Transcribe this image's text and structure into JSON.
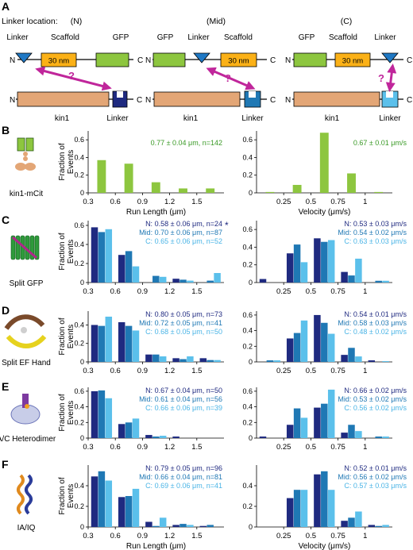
{
  "colors": {
    "N": "#1f2a80",
    "Mid": "#1f78b4",
    "C": "#5bc0eb",
    "B": "#8dc63f",
    "linker": "#1f78c4",
    "scaffold": "#fbb117",
    "gfp": "#8dc63f",
    "kin1": "#e3a676",
    "arrow": "#c0269b",
    "statN": "#1f2a80",
    "statMid": "#1f78b4",
    "statC": "#4ab4e6",
    "statB": "#3a9a26"
  },
  "panelA": {
    "letter": "A",
    "heading": "Linker location:",
    "locations": [
      "(N)",
      "(Mid)",
      "(C)"
    ],
    "labels": {
      "linker": "Linker",
      "scaffold": "Scaffold",
      "gfp": "GFP",
      "scaffold_inner": "30 nm",
      "kin1": "kin1",
      "N": "N",
      "C": "C",
      "question": "?"
    }
  },
  "panels": [
    {
      "letter": "B",
      "construct": "kin1-mCit",
      "icon": "kin1-mcit-icon",
      "runlength": {
        "stats": [
          {
            "text": "0.77 ± 0.04 μm, n=142",
            "color": "statB"
          }
        ],
        "star": ""
      },
      "velocity": {
        "stats": [
          {
            "text": "0.67 ± 0.01 μm/s",
            "color": "statB"
          }
        ]
      }
    },
    {
      "letter": "C",
      "construct": "Split GFP",
      "icon": "split-gfp-icon",
      "runlength": {
        "stats": [
          {
            "text": "N: 0.58 ± 0.06 μm, n=24",
            "color": "statN"
          },
          {
            "text": "Mid: 0.70 ± 0.06 μm, n=87",
            "color": "statMid"
          },
          {
            "text": "C: 0.65 ± 0.06 μm, n=52",
            "color": "statC"
          }
        ],
        "star": "*"
      },
      "velocity": {
        "stats": [
          {
            "text": "N: 0.53 ± 0.03 μm/s",
            "color": "statN"
          },
          {
            "text": "Mid: 0.54 ± 0.02 μm/s",
            "color": "statMid"
          },
          {
            "text": "C: 0.63 ± 0.03 μm/s",
            "color": "statC"
          }
        ]
      }
    },
    {
      "letter": "D",
      "construct": "Split EF Hand",
      "icon": "split-ef-hand-icon",
      "runlength": {
        "stats": [
          {
            "text": "N: 0.80 ± 0.05 μm, n=73",
            "color": "statN"
          },
          {
            "text": "Mid: 0.72 ± 0.05 μm, n=41",
            "color": "statMid"
          },
          {
            "text": "C: 0.68 ± 0.05 μm, n=50",
            "color": "statC"
          }
        ],
        "star": ""
      },
      "velocity": {
        "stats": [
          {
            "text": "N: 0.54 ± 0.01 μm/s",
            "color": "statN"
          },
          {
            "text": "Mid: 0.58 ± 0.03 μm/s",
            "color": "statMid"
          },
          {
            "text": "C: 0.48 ± 0.02 μm/s",
            "color": "statC"
          }
        ]
      }
    },
    {
      "letter": "E",
      "construct": "A/C Heterodimer",
      "icon": "ac-heterodimer-icon",
      "runlength": {
        "stats": [
          {
            "text": "N: 0.67 ± 0.04 μm, n=50",
            "color": "statN"
          },
          {
            "text": "Mid: 0.61 ± 0.04 μm, n=56",
            "color": "statMid"
          },
          {
            "text": "C: 0.66 ± 0.06 μm, n=39",
            "color": "statC"
          }
        ],
        "star": ""
      },
      "velocity": {
        "stats": [
          {
            "text": "N: 0.66 ± 0.02 μm/s",
            "color": "statN"
          },
          {
            "text": "Mid: 0.53 ± 0.02 μm/s",
            "color": "statMid"
          },
          {
            "text": "C: 0.56 ± 0.02 μm/s",
            "color": "statC"
          }
        ]
      }
    },
    {
      "letter": "F",
      "construct": "IA/IQ",
      "icon": "ia-iq-icon",
      "runlength": {
        "stats": [
          {
            "text": "N: 0.79 ± 0.05 μm, n=96",
            "color": "statN"
          },
          {
            "text": "Mid: 0.66 ± 0.04 μm, n=81",
            "color": "statMid"
          },
          {
            "text": "C: 0.69 ± 0.06 μm, n=41",
            "color": "statC"
          }
        ],
        "star": ""
      },
      "velocity": {
        "stats": [
          {
            "text": "N: 0.52 ± 0.01 μm/s",
            "color": "statN"
          },
          {
            "text": "Mid: 0.56 ± 0.02 μm/s",
            "color": "statMid"
          },
          {
            "text": "C: 0.57 ± 0.03 μm/s",
            "color": "statC"
          }
        ]
      }
    }
  ],
  "chart_data": [
    {
      "panel": "B",
      "type": "bar",
      "xlabel": "Run Length (μm)",
      "ylabel": "Fraction of Events",
      "xlim": [
        0.3,
        1.8
      ],
      "ylim": [
        0,
        0.7
      ],
      "xticks": [
        "0.3",
        "0.6",
        "0.9",
        "1.2",
        "1.5"
      ],
      "yticks": [
        "0",
        "0.2",
        "0.4",
        "0.6"
      ],
      "x": [
        0.45,
        0.75,
        1.05,
        1.35,
        1.65
      ],
      "series": [
        {
          "key": "B",
          "values": [
            0.37,
            0.33,
            0.12,
            0.05,
            0.05
          ]
        }
      ]
    },
    {
      "panel": "B",
      "type": "bar",
      "xlabel": "Velocity (μm/s)",
      "ylabel": "",
      "xlim": [
        0,
        1.25
      ],
      "ylim": [
        0,
        0.7
      ],
      "xticks": [
        "0.25",
        "0.5",
        "0.75",
        "1"
      ],
      "yticks": [
        "0",
        "0.2",
        "0.4",
        "0.6"
      ],
      "x": [
        0.125,
        0.375,
        0.625,
        0.875,
        1.125
      ],
      "series": [
        {
          "key": "B",
          "values": [
            0.01,
            0.09,
            0.68,
            0.22,
            0.01
          ]
        }
      ]
    },
    {
      "panel": "C",
      "type": "bar",
      "xlabel": "",
      "ylabel": "Fraction of Events",
      "xlim": [
        0.3,
        1.8
      ],
      "ylim": [
        0,
        0.65
      ],
      "xticks": [
        "0.3",
        "0.6",
        "0.9",
        "1.2",
        "1.5"
      ],
      "yticks": [
        "0",
        "0.2",
        "0.4",
        "0.6"
      ],
      "x": [
        0.45,
        0.75,
        1.05,
        1.35,
        1.65
      ],
      "series": [
        {
          "key": "N",
          "values": [
            0.58,
            0.29,
            0.0,
            0.04,
            0.0
          ]
        },
        {
          "key": "Mid",
          "values": [
            0.53,
            0.33,
            0.07,
            0.03,
            0.02
          ]
        },
        {
          "key": "C",
          "values": [
            0.56,
            0.17,
            0.06,
            0.02,
            0.1
          ]
        }
      ]
    },
    {
      "panel": "C",
      "type": "bar",
      "xlabel": "",
      "ylabel": "",
      "xlim": [
        0,
        1.25
      ],
      "ylim": [
        0,
        0.7
      ],
      "xticks": [
        "0.25",
        "0.5",
        "0.75",
        "1"
      ],
      "yticks": [
        "0",
        "0.2",
        "0.4",
        "0.6"
      ],
      "x": [
        0.125,
        0.375,
        0.625,
        0.875,
        1.125
      ],
      "series": [
        {
          "key": "N",
          "values": [
            0.04,
            0.33,
            0.5,
            0.12,
            0.0
          ]
        },
        {
          "key": "Mid",
          "values": [
            0.0,
            0.43,
            0.46,
            0.08,
            0.02
          ]
        },
        {
          "key": "C",
          "values": [
            0.0,
            0.23,
            0.48,
            0.27,
            0.02
          ]
        }
      ]
    },
    {
      "panel": "D",
      "type": "bar",
      "xlabel": "",
      "ylabel": "Fraction of Events",
      "xlim": [
        0.3,
        1.8
      ],
      "ylim": [
        0,
        0.55
      ],
      "xticks": [
        "0.3",
        "0.6",
        "0.9",
        "1.2",
        "1.5"
      ],
      "yticks": [
        "0",
        "0.2",
        "0.4"
      ],
      "x": [
        0.45,
        0.75,
        1.05,
        1.35,
        1.65
      ],
      "series": [
        {
          "key": "N",
          "values": [
            0.4,
            0.43,
            0.08,
            0.04,
            0.04
          ]
        },
        {
          "key": "Mid",
          "values": [
            0.39,
            0.39,
            0.08,
            0.03,
            0.02
          ]
        },
        {
          "key": "C",
          "values": [
            0.49,
            0.34,
            0.06,
            0.06,
            0.02
          ]
        }
      ]
    },
    {
      "panel": "D",
      "type": "bar",
      "xlabel": "",
      "ylabel": "",
      "xlim": [
        0,
        1.25
      ],
      "ylim": [
        0,
        0.65
      ],
      "xticks": [
        "0.25",
        "0.5",
        "0.75",
        "1"
      ],
      "yticks": [
        "0",
        "0.2",
        "0.4",
        "0.6"
      ],
      "x": [
        0.125,
        0.375,
        0.625,
        0.875,
        1.125
      ],
      "series": [
        {
          "key": "N",
          "values": [
            0.0,
            0.3,
            0.6,
            0.09,
            0.02
          ]
        },
        {
          "key": "Mid",
          "values": [
            0.02,
            0.37,
            0.5,
            0.18,
            0.0
          ]
        },
        {
          "key": "C",
          "values": [
            0.02,
            0.53,
            0.36,
            0.07,
            0.01
          ]
        }
      ]
    },
    {
      "panel": "E",
      "type": "bar",
      "xlabel": "",
      "ylabel": "Fraction of Events",
      "xlim": [
        0.3,
        1.8
      ],
      "ylim": [
        0,
        0.65
      ],
      "xticks": [
        "0.3",
        "0.6",
        "0.9",
        "1.2",
        "1.5"
      ],
      "yticks": [
        "0",
        "0.2",
        "0.4",
        "0.6"
      ],
      "x": [
        0.45,
        0.75,
        1.05,
        1.35,
        1.65
      ],
      "series": [
        {
          "key": "N",
          "values": [
            0.6,
            0.18,
            0.04,
            0.02,
            0.0
          ]
        },
        {
          "key": "Mid",
          "values": [
            0.61,
            0.2,
            0.02,
            0.0,
            0.0
          ]
        },
        {
          "key": "C",
          "values": [
            0.51,
            0.25,
            0.03,
            0.0,
            0.0
          ]
        }
      ]
    },
    {
      "panel": "E",
      "type": "bar",
      "xlabel": "",
      "ylabel": "",
      "xlim": [
        0,
        1.25
      ],
      "ylim": [
        0,
        0.65
      ],
      "xticks": [
        "0.25",
        "0.5",
        "0.75",
        "1"
      ],
      "yticks": [
        "0",
        "0.2",
        "0.4",
        "0.6"
      ],
      "x": [
        0.125,
        0.375,
        0.625,
        0.875,
        1.125
      ],
      "series": [
        {
          "key": "N",
          "values": [
            0.02,
            0.17,
            0.39,
            0.07,
            0.0
          ]
        },
        {
          "key": "Mid",
          "values": [
            0.0,
            0.38,
            0.44,
            0.17,
            0.02
          ]
        },
        {
          "key": "C",
          "values": [
            0.0,
            0.26,
            0.62,
            0.09,
            0.02
          ]
        }
      ]
    },
    {
      "panel": "F",
      "type": "bar",
      "xlabel": "Run Length (μm)",
      "ylabel": "Fraction of Events",
      "xlim": [
        0.3,
        1.8
      ],
      "ylim": [
        0,
        0.6
      ],
      "xticks": [
        "0.3",
        "0.6",
        "0.9",
        "1.2",
        "1.5"
      ],
      "yticks": [
        "0",
        "0.2",
        "0.4"
      ],
      "x": [
        0.45,
        0.75,
        1.05,
        1.35,
        1.65
      ],
      "series": [
        {
          "key": "N",
          "values": [
            0.49,
            0.29,
            0.05,
            0.02,
            0.01
          ]
        },
        {
          "key": "Mid",
          "values": [
            0.54,
            0.3,
            0.01,
            0.03,
            0.02
          ]
        },
        {
          "key": "C",
          "values": [
            0.45,
            0.37,
            0.09,
            0.02,
            0.0
          ]
        }
      ]
    },
    {
      "panel": "F",
      "type": "bar",
      "xlabel": "Velocity (μm/s)",
      "ylabel": "",
      "xlim": [
        0,
        1.25
      ],
      "ylim": [
        0,
        0.6
      ],
      "xticks": [
        "0.25",
        "0.5",
        "0.75",
        "1"
      ],
      "yticks": [
        "0",
        "0.2",
        "0.4"
      ],
      "x": [
        0.125,
        0.375,
        0.625,
        0.875,
        1.125
      ],
      "series": [
        {
          "key": "N",
          "values": [
            0.0,
            0.28,
            0.51,
            0.06,
            0.02
          ]
        },
        {
          "key": "Mid",
          "values": [
            0.0,
            0.36,
            0.54,
            0.09,
            0.01
          ]
        },
        {
          "key": "C",
          "values": [
            0.0,
            0.36,
            0.36,
            0.15,
            0.02
          ]
        }
      ]
    }
  ]
}
